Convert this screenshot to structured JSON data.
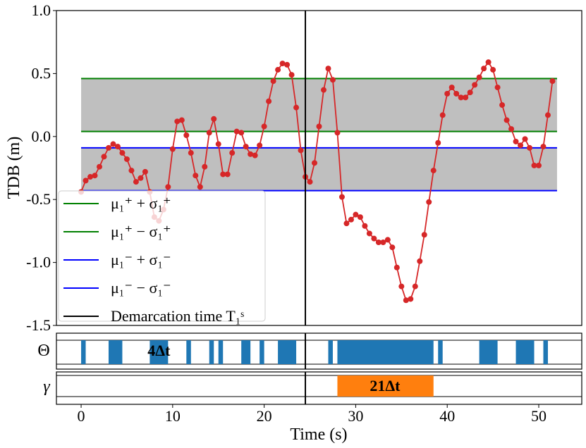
{
  "chart_data": {
    "type": "line",
    "main": {
      "ylabel": "TDB (m)",
      "ylim": [
        -1.5,
        1.0
      ],
      "xlim": [
        -2.7,
        54.7
      ],
      "yticks": [
        1.0,
        0.5,
        0.0,
        -0.5,
        -1.0,
        -1.5
      ],
      "ytick_labels": [
        "1.0",
        "0.5",
        "0.0",
        "-0.5",
        "-1.0",
        "-1.5"
      ],
      "series": {
        "color": "#d62728",
        "x": [
          0.0,
          0.5,
          1.0,
          1.5,
          2.0,
          2.5,
          3.0,
          3.5,
          4.0,
          4.5,
          5.0,
          5.5,
          6.0,
          6.5,
          7.0,
          7.5,
          8.0,
          8.5,
          9.0,
          9.5,
          10.0,
          10.5,
          11.0,
          11.5,
          12.0,
          12.5,
          13.0,
          13.5,
          14.0,
          14.5,
          15.0,
          15.5,
          16.0,
          16.5,
          17.0,
          17.5,
          18.0,
          18.5,
          19.0,
          19.5,
          20.0,
          20.5,
          21.0,
          21.5,
          22.0,
          22.5,
          23.0,
          23.5,
          24.0,
          24.5,
          25.0,
          25.5,
          26.0,
          26.5,
          27.0,
          27.5,
          28.0,
          28.5,
          29.0,
          29.5,
          30.0,
          30.5,
          31.0,
          31.5,
          32.0,
          32.5,
          33.0,
          33.5,
          34.0,
          34.5,
          35.0,
          35.5,
          36.0,
          36.5,
          37.0,
          37.5,
          38.0,
          38.5,
          39.0,
          39.5,
          40.0,
          40.5,
          41.0,
          41.5,
          42.0,
          42.5,
          43.0,
          43.5,
          44.0,
          44.5,
          45.0,
          45.5,
          46.0,
          46.5,
          47.0,
          47.5,
          48.0,
          48.5,
          49.0,
          49.5,
          50.0,
          50.5,
          51.0,
          51.5
        ],
        "y": [
          -0.44,
          -0.35,
          -0.32,
          -0.31,
          -0.24,
          -0.16,
          -0.09,
          -0.06,
          -0.08,
          -0.13,
          -0.18,
          -0.27,
          -0.36,
          -0.33,
          -0.28,
          -0.44,
          -0.64,
          -0.67,
          -0.58,
          -0.4,
          -0.1,
          0.12,
          0.13,
          0.01,
          -0.13,
          -0.31,
          -0.4,
          -0.24,
          0.03,
          0.14,
          -0.06,
          -0.3,
          -0.3,
          -0.13,
          0.04,
          0.03,
          -0.08,
          -0.14,
          -0.15,
          -0.07,
          0.08,
          0.28,
          0.44,
          0.53,
          0.58,
          0.57,
          0.49,
          0.23,
          -0.11,
          -0.32,
          -0.36,
          -0.21,
          0.08,
          0.37,
          0.54,
          0.45,
          0.03,
          -0.48,
          -0.69,
          -0.66,
          -0.62,
          -0.64,
          -0.71,
          -0.77,
          -0.81,
          -0.84,
          -0.84,
          -0.82,
          -0.88,
          -1.04,
          -1.19,
          -1.3,
          -1.29,
          -1.19,
          -0.99,
          -0.78,
          -0.52,
          -0.27,
          -0.05,
          0.17,
          0.34,
          0.39,
          0.34,
          0.31,
          0.31,
          0.35,
          0.41,
          0.47,
          0.54,
          0.59,
          0.53,
          0.39,
          0.25,
          0.13,
          0.06,
          -0.04,
          -0.07,
          -0.02,
          -0.09,
          -0.23,
          -0.23,
          -0.08,
          0.17,
          0.44
        ]
      },
      "bands": [
        {
          "y0": 0.04,
          "y1": 0.46,
          "fill": "#bfbfbf",
          "edge": "green"
        },
        {
          "y0": -0.43,
          "y1": -0.09,
          "fill": "#bfbfbf",
          "edge": "blue"
        }
      ],
      "band_x_range": [
        0.0,
        52.0
      ],
      "vline_x": 24.5
    },
    "legend": {
      "placement": "lower-left",
      "entries": [
        {
          "color": "green",
          "label": "μ₁⁺ + σ₁⁺"
        },
        {
          "color": "green",
          "label": "μ₁⁺ − σ₁⁺"
        },
        {
          "color": "blue",
          "label": "μ₁⁻ + σ₁⁻"
        },
        {
          "color": "blue",
          "label": "μ₁⁻ − σ₁⁻"
        },
        {
          "color": "black",
          "label": "Demarcation time T₁ˢ"
        }
      ]
    },
    "theta": {
      "label": "Θ",
      "color": "#1f77b4",
      "segments": [
        [
          0.0,
          0.5
        ],
        [
          3.0,
          4.5
        ],
        [
          7.5,
          9.5
        ],
        [
          11.5,
          12.0
        ],
        [
          14.0,
          14.5
        ],
        [
          15.0,
          15.5
        ],
        [
          17.5,
          18.5
        ],
        [
          19.5,
          20.0
        ],
        [
          21.5,
          23.5
        ],
        [
          27.0,
          27.5
        ],
        [
          28.0,
          38.5
        ],
        [
          39.0,
          39.5
        ],
        [
          43.5,
          45.5
        ],
        [
          47.5,
          49.5
        ],
        [
          50.5,
          51.0
        ]
      ],
      "annotation": "4Δt",
      "annotation_x": 8.5
    },
    "gamma": {
      "label": "γ",
      "color": "#ff7f0e",
      "segments": [
        [
          28.0,
          38.5
        ]
      ],
      "annotation": "21Δt",
      "annotation_x": 33.2
    },
    "x": {
      "xlabel": "Time (s)",
      "ticks": [
        0,
        10,
        20,
        30,
        40,
        50
      ],
      "tick_labels": [
        "0",
        "10",
        "20",
        "30",
        "40",
        "50"
      ]
    }
  }
}
